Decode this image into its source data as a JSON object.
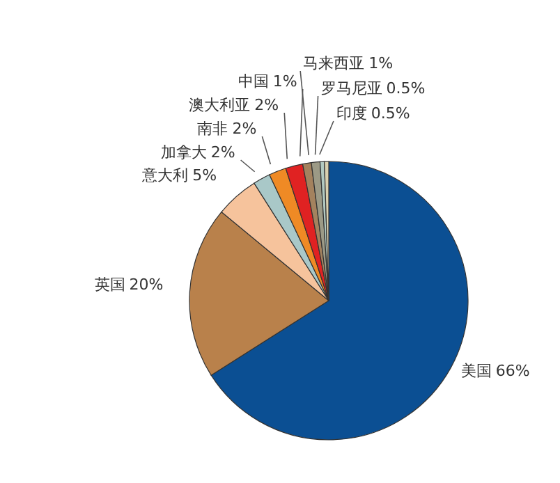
{
  "chart_data": {
    "type": "pie",
    "categories": [
      "美国",
      "英国",
      "意大利",
      "加拿大",
      "南非",
      "澳大利亚",
      "中国",
      "马来西亚",
      "罗马尼亚",
      "印度"
    ],
    "values": [
      66,
      20,
      5,
      2,
      2,
      2,
      1,
      1,
      0.5,
      0.5
    ],
    "value_labels": [
      "66%",
      "20%",
      "5%",
      "2%",
      "2%",
      "2%",
      "1%",
      "1%",
      "0.5%",
      "0.5%"
    ],
    "colors": [
      "#0b4f93",
      "#b9814b",
      "#f6c39c",
      "#a9c8c8",
      "#ef8a25",
      "#e02222",
      "#a4825e",
      "#9c9a86",
      "#b2c9c1",
      "#d9d0b0"
    ],
    "legend": false
  }
}
